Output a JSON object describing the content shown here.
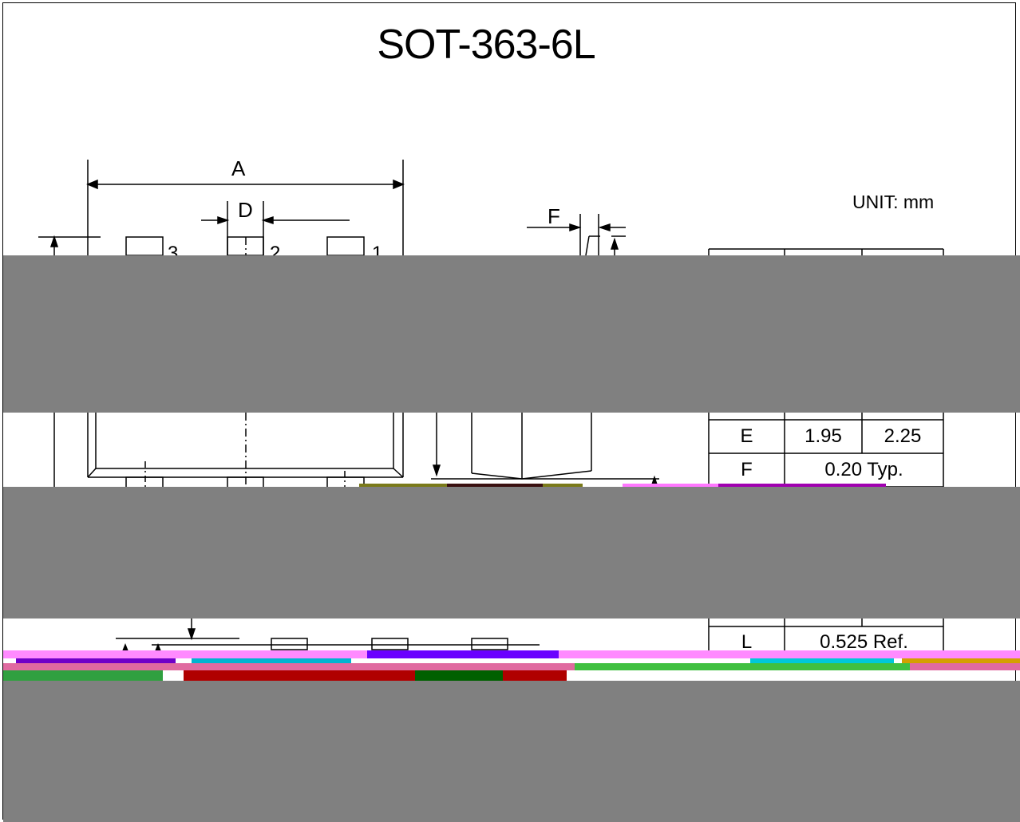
{
  "title": "SOT-363-6L",
  "unit_label": "UNIT: mm",
  "dims": {
    "A": "A",
    "D": "D",
    "F": "F"
  },
  "pins": {
    "p3": "3",
    "p2": "2",
    "p1": "1"
  },
  "table": {
    "rows": [
      {
        "sym": "E",
        "min": "1.95",
        "max": "2.25"
      },
      {
        "sym": "F",
        "span": "0.20 Typ."
      },
      {
        "sym": "L",
        "span": "0.525 Ref."
      }
    ]
  }
}
